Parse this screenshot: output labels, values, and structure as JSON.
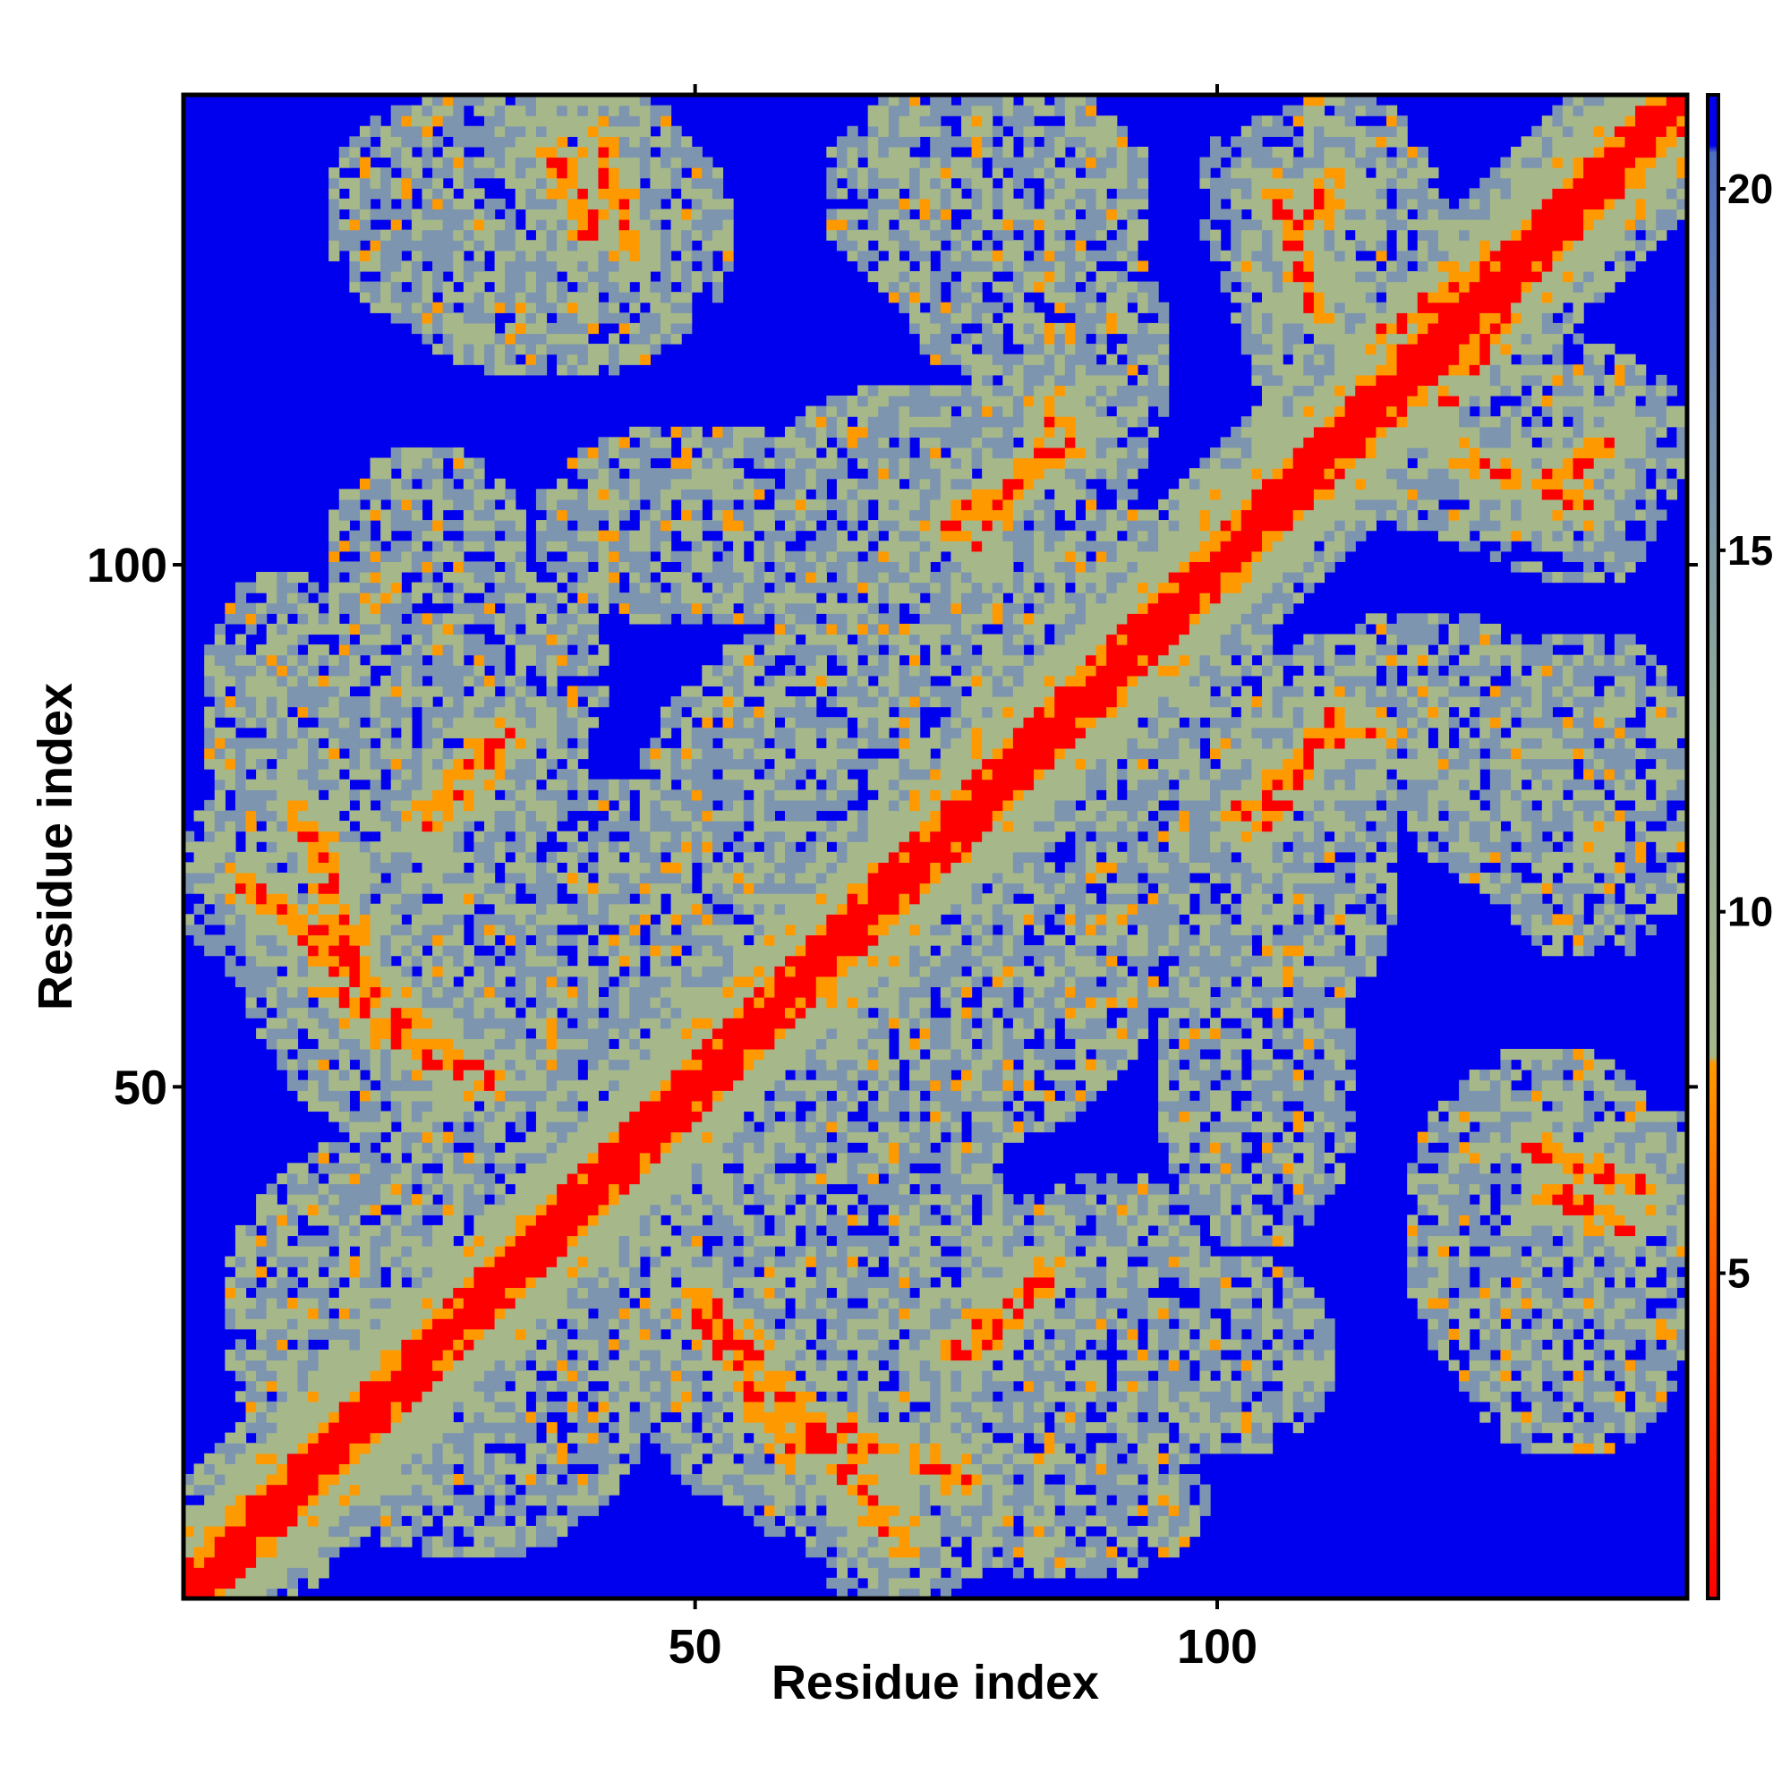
{
  "chart_data": {
    "type": "heatmap",
    "title": "",
    "xlabel": "Residue index",
    "ylabel": "Residue index",
    "xlim": [
      1,
      145
    ],
    "ylim": [
      1,
      145
    ],
    "n_residues": 145,
    "x_ticks": [
      50,
      100
    ],
    "y_ticks": [
      50,
      100
    ],
    "grid": false,
    "legend": "right",
    "colorbar": {
      "range": [
        0.5,
        21.3
      ],
      "ticks": [
        5,
        10,
        15,
        20
      ],
      "stops": [
        {
          "value": 0.5,
          "color": "#ff0000"
        },
        {
          "value": 4,
          "color": "#ff4400"
        },
        {
          "value": 7.9,
          "color": "#ff9900"
        },
        {
          "value": 8.0,
          "color": "#a6b88a"
        },
        {
          "value": 13,
          "color": "#8fa89a"
        },
        {
          "value": 17,
          "color": "#6f8cb0"
        },
        {
          "value": 20.5,
          "color": "#4f6fc0"
        },
        {
          "value": 20.6,
          "color": "#0000ee"
        }
      ]
    },
    "cmap": {
      "far": "#0000ee",
      "near": "#ff0000",
      "contact": "#ff9900",
      "mid": "#a6b88a",
      "outer": "#7d95ae"
    },
    "contact_bands": [
      {
        "x1": 6,
        "y1": 70,
        "x2": 30,
        "y2": 50
      },
      {
        "x1": 12,
        "y1": 76,
        "x2": 18,
        "y2": 60
      },
      {
        "x1": 24,
        "y1": 74,
        "x2": 30,
        "y2": 82
      },
      {
        "x1": 50,
        "y1": 28,
        "x2": 60,
        "y2": 14
      },
      {
        "x1": 58,
        "y1": 16,
        "x2": 66,
        "y2": 14
      },
      {
        "x1": 76,
        "y1": 24,
        "x2": 84,
        "y2": 32
      },
      {
        "x1": 76,
        "y1": 102,
        "x2": 84,
        "y2": 112
      },
      {
        "x1": 104,
        "y1": 74,
        "x2": 112,
        "y2": 86
      },
      {
        "x1": 112,
        "y1": 84,
        "x2": 116,
        "y2": 84
      },
      {
        "x1": 36,
        "y1": 140,
        "x2": 40,
        "y2": 132
      },
      {
        "x1": 108,
        "y1": 132,
        "x2": 112,
        "y2": 138
      },
      {
        "x1": 116,
        "y1": 122,
        "x2": 124,
        "y2": 128
      },
      {
        "x1": 124,
        "y1": 110,
        "x2": 136,
        "y2": 106
      },
      {
        "x1": 130,
        "y1": 44,
        "x2": 142,
        "y2": 40
      }
    ],
    "halo_blobs": [
      {
        "x": 28,
        "y": 134,
        "rx": 14,
        "ry": 12
      },
      {
        "x": 78,
        "y": 132,
        "rx": 10,
        "ry": 14
      },
      {
        "x": 112,
        "y": 132,
        "rx": 10,
        "ry": 14
      },
      {
        "x": 50,
        "y": 104,
        "rx": 16,
        "ry": 10
      },
      {
        "x": 72,
        "y": 100,
        "rx": 16,
        "ry": 14
      },
      {
        "x": 94,
        "y": 96,
        "rx": 12,
        "ry": 10
      },
      {
        "x": 28,
        "y": 90,
        "rx": 14,
        "ry": 10
      },
      {
        "x": 30,
        "y": 62,
        "rx": 22,
        "ry": 20
      },
      {
        "x": 56,
        "y": 76,
        "rx": 12,
        "ry": 16
      },
      {
        "x": 84,
        "y": 60,
        "rx": 10,
        "ry": 12
      },
      {
        "x": 104,
        "y": 72,
        "rx": 14,
        "ry": 18
      },
      {
        "x": 136,
        "y": 78,
        "rx": 12,
        "ry": 16
      },
      {
        "x": 22,
        "y": 28,
        "rx": 18,
        "ry": 18
      },
      {
        "x": 58,
        "y": 24,
        "rx": 14,
        "ry": 16
      },
      {
        "x": 82,
        "y": 26,
        "rx": 12,
        "ry": 14
      },
      {
        "x": 100,
        "y": 24,
        "rx": 12,
        "ry": 10
      },
      {
        "x": 132,
        "y": 36,
        "rx": 14,
        "ry": 18
      },
      {
        "x": 128,
        "y": 112,
        "rx": 18,
        "ry": 10
      },
      {
        "x": 120,
        "y": 88,
        "rx": 12,
        "ry": 8
      },
      {
        "x": 10,
        "y": 86,
        "rx": 8,
        "ry": 14
      },
      {
        "x": 44,
        "y": 30,
        "rx": 10,
        "ry": 10
      },
      {
        "x": 70,
        "y": 40,
        "rx": 10,
        "ry": 12
      }
    ],
    "seed": 7
  }
}
